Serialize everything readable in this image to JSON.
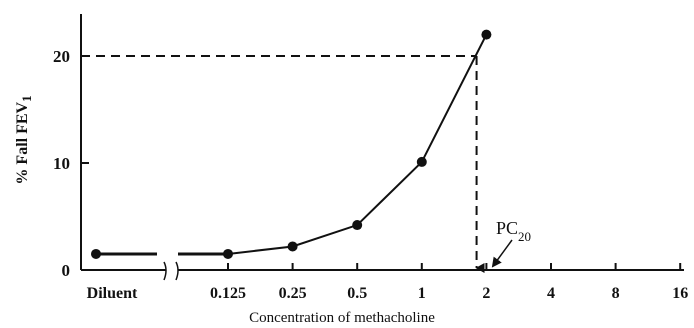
{
  "chart_data": {
    "type": "line",
    "title": "",
    "xlabel": "Concentration of methacholine",
    "ylabel": "% Fall FEV",
    "ylabel_subscript": "1",
    "x_scale": "log2",
    "x_ticks": [
      {
        "label": "Diluent",
        "value": null
      },
      {
        "label": "0.125",
        "value": 0.125
      },
      {
        "label": "0.25",
        "value": 0.25
      },
      {
        "label": "0.5",
        "value": 0.5
      },
      {
        "label": "1",
        "value": 1
      },
      {
        "label": "2",
        "value": 2
      },
      {
        "label": "4",
        "value": 4
      },
      {
        "label": "8",
        "value": 8
      },
      {
        "label": "16",
        "value": 16
      }
    ],
    "y_ticks": [
      0,
      10,
      20
    ],
    "ylim": [
      0,
      23
    ],
    "series": [
      {
        "diluent_value": 1.5,
        "points": [
          {
            "x": 0.125,
            "y": 1.5
          },
          {
            "x": 0.25,
            "y": 2.2
          },
          {
            "x": 0.5,
            "y": 4.2
          },
          {
            "x": 1,
            "y": 10.1
          },
          {
            "x": 2,
            "y": 22.0
          }
        ]
      }
    ],
    "reference_line": {
      "y": 20
    },
    "annotation": {
      "text": "PC",
      "subscript": "20",
      "x": 1.8
    },
    "axis_break": true,
    "grid": false,
    "legend": "none"
  }
}
